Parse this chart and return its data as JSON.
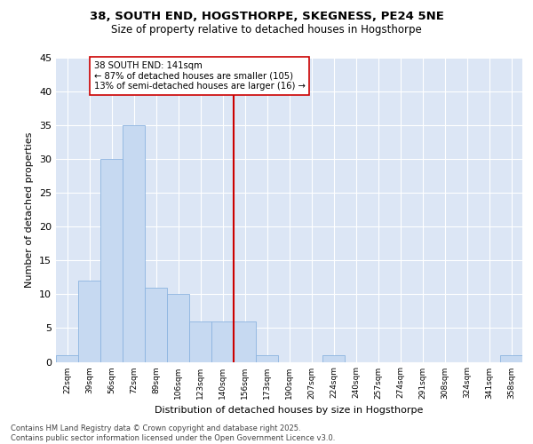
{
  "title": "38, SOUTH END, HOGSTHORPE, SKEGNESS, PE24 5NE",
  "subtitle": "Size of property relative to detached houses in Hogsthorpe",
  "xlabel": "Distribution of detached houses by size in Hogsthorpe",
  "ylabel": "Number of detached properties",
  "bin_labels": [
    "22sqm",
    "39sqm",
    "56sqm",
    "72sqm",
    "89sqm",
    "106sqm",
    "123sqm",
    "140sqm",
    "156sqm",
    "173sqm",
    "190sqm",
    "207sqm",
    "224sqm",
    "240sqm",
    "257sqm",
    "274sqm",
    "291sqm",
    "308sqm",
    "324sqm",
    "341sqm",
    "358sqm"
  ],
  "bar_values": [
    1,
    12,
    30,
    35,
    11,
    10,
    6,
    6,
    6,
    1,
    0,
    0,
    1,
    0,
    0,
    0,
    0,
    0,
    0,
    0,
    1
  ],
  "bar_color": "#c6d9f1",
  "bar_edge_color": "#8cb4e0",
  "grid_color": "#d0d8e8",
  "background_color": "#dce6f5",
  "vline_x": 7.5,
  "vline_color": "#cc0000",
  "annotation_text": "38 SOUTH END: 141sqm\n← 87% of detached houses are smaller (105)\n13% of semi-detached houses are larger (16) →",
  "annotation_box_color": "#ffffff",
  "annotation_box_edge": "#cc0000",
  "ylim": [
    0,
    45
  ],
  "yticks": [
    0,
    5,
    10,
    15,
    20,
    25,
    30,
    35,
    40,
    45
  ],
  "footer_line1": "Contains HM Land Registry data © Crown copyright and database right 2025.",
  "footer_line2": "Contains public sector information licensed under the Open Government Licence v3.0."
}
